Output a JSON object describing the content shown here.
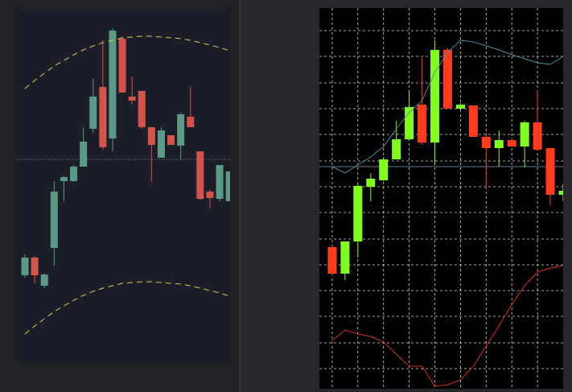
{
  "chart_data": [
    {
      "type": "candlestick",
      "x": [
        0,
        1,
        2,
        3,
        4,
        5,
        6,
        7,
        8,
        9,
        10,
        11,
        12,
        13,
        14,
        15,
        16,
        17,
        18,
        19,
        20,
        21
      ],
      "open": [
        108,
        130,
        95,
        142,
        225,
        225,
        243,
        290,
        342,
        278,
        402,
        330,
        337,
        292,
        254,
        282,
        269,
        305,
        262,
        212,
        203,
        200
      ],
      "high": [
        134,
        132,
        110,
        225,
        232,
        245,
        292,
        352,
        400,
        415,
        405,
        355,
        337,
        292,
        292,
        282,
        310,
        342,
        262,
        215,
        245,
        237
      ],
      "low": [
        105,
        98,
        92,
        120,
        200,
        224,
        243,
        285,
        264,
        262,
        335,
        320,
        290,
        224,
        254,
        270,
        252,
        292,
        202,
        192,
        200,
        200
      ],
      "close": [
        130,
        108,
        109,
        212,
        230,
        243,
        274,
        330,
        267,
        412,
        335,
        325,
        292,
        270,
        288,
        270,
        308,
        292,
        203,
        204,
        245,
        237
      ],
      "up_color": "#5b9a86",
      "down_color": "#d4544a",
      "xlim": [
        -0.83,
        21.07
      ],
      "ylim": [
        0,
        440
      ],
      "lines": [
        {
          "color": "#d9cc4c",
          "style": "dashed",
          "values": [
            340,
            350,
            359,
            368,
            375,
            382,
            388,
            393,
            397,
            400,
            403,
            404,
            405,
            405,
            404,
            403,
            402,
            400,
            397,
            394,
            391,
            387
          ]
        },
        {
          "color": "#d9cc4c",
          "style": "dashed",
          "values": [
            35,
            45,
            54,
            63,
            70,
            77,
            83,
            88,
            92,
            95,
            98,
            99,
            100,
            100,
            99,
            98,
            97,
            95,
            92,
            89,
            86,
            82
          ]
        }
      ],
      "hline": {
        "value": 252,
        "color": "#8a8f9a",
        "style": "dotted"
      },
      "grid": false
    },
    {
      "type": "candlestick",
      "x": [
        1,
        2,
        3,
        4,
        5,
        6,
        7,
        8,
        9,
        10,
        11,
        12,
        13,
        14,
        15,
        16,
        17,
        18,
        19
      ],
      "open": [
        176,
        143,
        183,
        251,
        259,
        285,
        310,
        353,
        306,
        421,
        348,
        352,
        313,
        299,
        309,
        301,
        331,
        299,
        241
      ],
      "high": [
        178,
        183,
        255,
        268,
        288,
        333,
        370,
        411,
        433,
        423,
        355,
        352,
        318,
        321,
        309,
        333,
        371,
        299,
        255
      ],
      "low": [
        141,
        135,
        163,
        233,
        258,
        285,
        308,
        303,
        278,
        348,
        346,
        313,
        248,
        276,
        301,
        275,
        297,
        228,
        233
      ],
      "close": [
        143,
        183,
        252,
        261,
        285,
        310,
        350,
        306,
        421,
        348,
        353,
        313,
        299,
        309,
        301,
        331,
        297,
        241,
        246
      ],
      "up_color": "#80ff1f",
      "down_color": "#ff3b1c",
      "xlim": [
        0,
        19
      ],
      "ylim": [
        0,
        473
      ],
      "xticks": [
        1,
        3,
        5,
        7,
        9,
        11,
        13,
        15,
        17
      ],
      "yticks": [
        25,
        57,
        90,
        122,
        154,
        186,
        219,
        251,
        283,
        316,
        348,
        380,
        413,
        445
      ],
      "lines": [
        {
          "color": "#4f8e9c",
          "style": "solid",
          "values": [
            276,
            268,
            278,
            288,
            301,
            323,
            343,
            358,
            393,
            418,
            433,
            431,
            426,
            421,
            415,
            410,
            405,
            403,
            413
          ]
        },
        {
          "color": "#d8301c",
          "style": "solid",
          "values": [
            60,
            73,
            68,
            65,
            58,
            43,
            28,
            28,
            3,
            5,
            11,
            28,
            53,
            78,
            105,
            128,
            145,
            150,
            153
          ]
        }
      ],
      "hline": {
        "value": 276,
        "color": "#6d7b8a",
        "style": "solid"
      },
      "grid": true
    }
  ]
}
